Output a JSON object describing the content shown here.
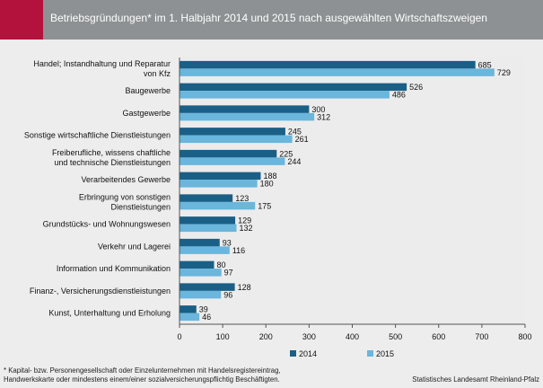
{
  "title": "Betriebsgründungen* im 1. Halbjahr 2014 und 2015 nach ausgewählten Wirtschaftszweigen",
  "footnote": "* Kapital- bzw. Personengesellschaft oder Einzelunternehmen mit  Handelsregistereintrag,\nHandwerkskarte oder mindestens einem/einer sozialversicherungspflichtig Beschäftigten.",
  "source": "Statistisches Landesamt Rheinland-Pfalz",
  "colors": {
    "header": "#8d9193",
    "accent": "#b3123c",
    "s2014": "#1a5f86",
    "s2015": "#6ab6dc"
  },
  "chart_data": {
    "type": "bar",
    "orientation": "horizontal",
    "title": "Betriebsgründungen* im 1. Halbjahr 2014 und 2015 nach ausgewählten Wirtschaftszweigen",
    "categories": [
      [
        "Handel; Instandhaltung und Reparatur",
        "von Kfz"
      ],
      [
        "Baugewerbe"
      ],
      [
        "Gastgewerbe"
      ],
      [
        "Sonstige wirtschaftliche Dienstleistungen"
      ],
      [
        "Freiberufliche, wissens chaftliche",
        "und technische Dienstleistungen"
      ],
      [
        "Verarbeitendes Gewerbe"
      ],
      [
        "Erbringung von sonstigen",
        "Dienstleistungen"
      ],
      [
        "Grundstücks- und Wohnungswesen"
      ],
      [
        "Verkehr und Lagerei"
      ],
      [
        "Information und Kommunikation"
      ],
      [
        "Finanz-, Versicherungsdienstleistungen"
      ],
      [
        "Kunst, Unterhaltung und Erholung"
      ]
    ],
    "series": [
      {
        "name": "2014",
        "values": [
          685,
          526,
          300,
          245,
          225,
          188,
          123,
          129,
          93,
          80,
          128,
          39
        ]
      },
      {
        "name": "2015",
        "values": [
          729,
          486,
          312,
          261,
          244,
          180,
          175,
          132,
          116,
          97,
          96,
          46
        ]
      }
    ],
    "xlim": [
      0,
      800
    ],
    "xticks": [
      0,
      100,
      200,
      300,
      400,
      500,
      600,
      700,
      800
    ],
    "legend": "bottom",
    "grid": false
  }
}
